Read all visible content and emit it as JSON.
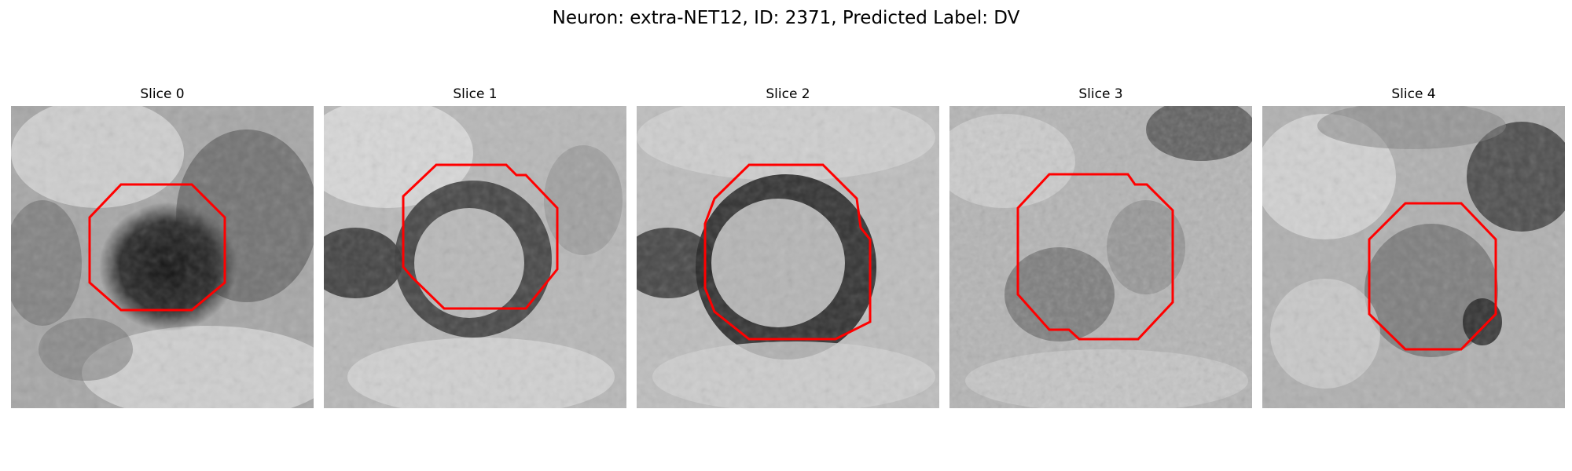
{
  "figure": {
    "title": "Neuron: extra-NET12, ID: 2371, Predicted Label: DV",
    "roi_color": "#ff0000"
  },
  "slices": [
    {
      "label": "Slice 0"
    },
    {
      "label": "Slice 1"
    },
    {
      "label": "Slice 2"
    },
    {
      "label": "Slice 3"
    },
    {
      "label": "Slice 4"
    }
  ]
}
